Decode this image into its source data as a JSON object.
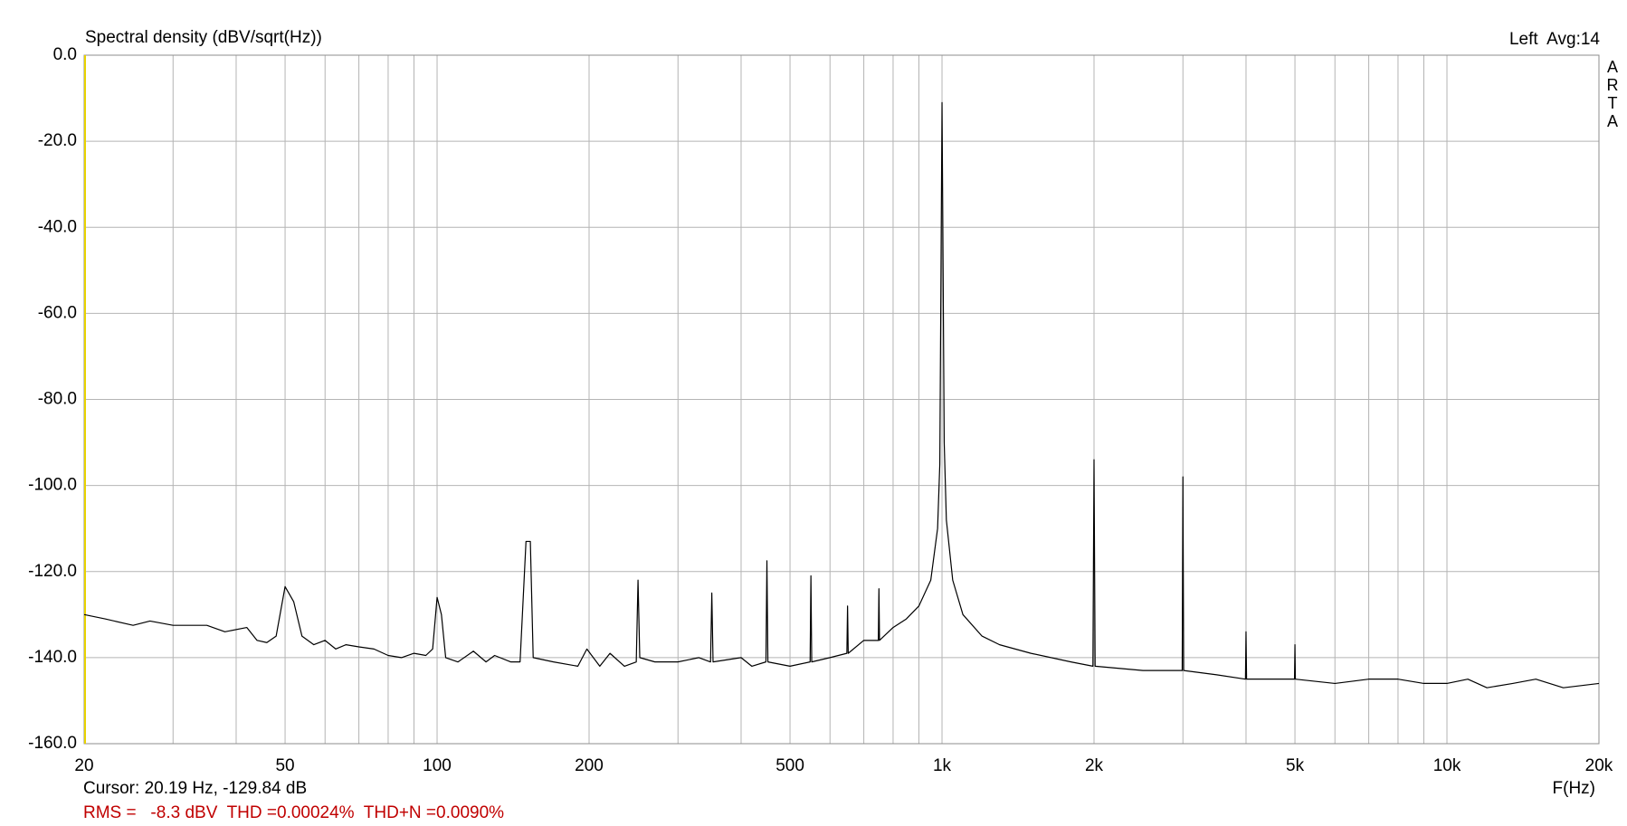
{
  "chart_data": {
    "type": "line",
    "title": "Spectral density (dBV/sqrt(Hz))",
    "channel_info": "Left  Avg:14",
    "brand": "ARTA",
    "x_label": "F(Hz)",
    "cursor_info": "Cursor: 20.19 Hz, -129.84 dB",
    "measurement_info": "RMS =   -8.3 dBV  THD =0.00024%  THD+N =0.0090%",
    "log_x": true,
    "grid": true,
    "color": "#000000",
    "xlim": [
      20,
      20000
    ],
    "ylim": [
      -160,
      0
    ],
    "xticks": [
      20,
      50,
      100,
      200,
      500,
      {
        "value": 1000,
        "label": "1k"
      },
      {
        "value": 2000,
        "label": "2k"
      },
      {
        "value": 5000,
        "label": "5k"
      },
      {
        "value": 10000,
        "label": "10k"
      },
      {
        "value": 20000,
        "label": "20k"
      }
    ],
    "x_minor_grid": [
      30,
      40,
      60,
      70,
      80,
      90,
      300,
      400,
      600,
      700,
      800,
      900,
      3000,
      4000,
      6000,
      7000,
      8000,
      9000
    ],
    "yticks": [
      {
        "value": 0,
        "label": "0.0"
      },
      {
        "value": -20,
        "label": "-20.0"
      },
      {
        "value": -40,
        "label": "-40.0"
      },
      {
        "value": -60,
        "label": "-60.0"
      },
      {
        "value": -80,
        "label": "-80.0"
      },
      {
        "value": -100,
        "label": "-100.0"
      },
      {
        "value": -120,
        "label": "-120.0"
      },
      {
        "value": -140,
        "label": "-140.0"
      },
      {
        "value": -160,
        "label": "-160.0"
      }
    ],
    "x": [
      20,
      22,
      25,
      27,
      30,
      35,
      38,
      42,
      44,
      46,
      48,
      50,
      52,
      54,
      57,
      60,
      63,
      66,
      70,
      75,
      80,
      85,
      90,
      95,
      98,
      100,
      102,
      104,
      110,
      118,
      125,
      130,
      140,
      146,
      150,
      153,
      155,
      170,
      190,
      198,
      210,
      220,
      235,
      248,
      250,
      252,
      270,
      300,
      330,
      348,
      350,
      352,
      400,
      420,
      448,
      450,
      452,
      500,
      548,
      550,
      552,
      600,
      648,
      650,
      652,
      700,
      748,
      750,
      752,
      800,
      850,
      900,
      950,
      980,
      990,
      1000,
      1010,
      1020,
      1050,
      1100,
      1200,
      1300,
      1500,
      1800,
      1990,
      2000,
      2010,
      2500,
      2990,
      3000,
      3010,
      3500,
      3990,
      4000,
      4010,
      4500,
      4990,
      5000,
      5010,
      6000,
      7000,
      8000,
      9000,
      10000,
      11000,
      12000,
      13500,
      15000,
      17000,
      20000
    ],
    "values": [
      -130,
      -131,
      -132.5,
      -131.5,
      -132.5,
      -132.5,
      -134,
      -133,
      -136,
      -136.5,
      -135,
      -123.5,
      -127,
      -135,
      -137,
      -136,
      -138,
      -137,
      -137.5,
      -138,
      -139.5,
      -140,
      -139,
      -139.5,
      -138,
      -126,
      -130,
      -140,
      -141,
      -138.5,
      -141,
      -139.5,
      -141,
      -141,
      -113,
      -113,
      -140,
      -141,
      -142,
      -138,
      -142,
      -139,
      -142,
      -141,
      -122,
      -140,
      -141,
      -141,
      -140,
      -141,
      -125,
      -141,
      -140,
      -142,
      -141,
      -117.5,
      -141,
      -142,
      -141,
      -121,
      -141,
      -140,
      -139,
      -128,
      -139,
      -136,
      -136,
      -124,
      -136,
      -133,
      -131,
      -128,
      -122,
      -110,
      -95,
      -11,
      -90,
      -108,
      -122,
      -130,
      -135,
      -137,
      -139,
      -141,
      -142,
      -94,
      -142,
      -143,
      -143,
      -98,
      -143,
      -144,
      -145,
      -134,
      -145,
      -145,
      -145,
      -137,
      -145,
      -146,
      -145,
      -145,
      -146,
      -146,
      -145,
      -147,
      -146,
      -145,
      -147,
      -146
    ]
  }
}
